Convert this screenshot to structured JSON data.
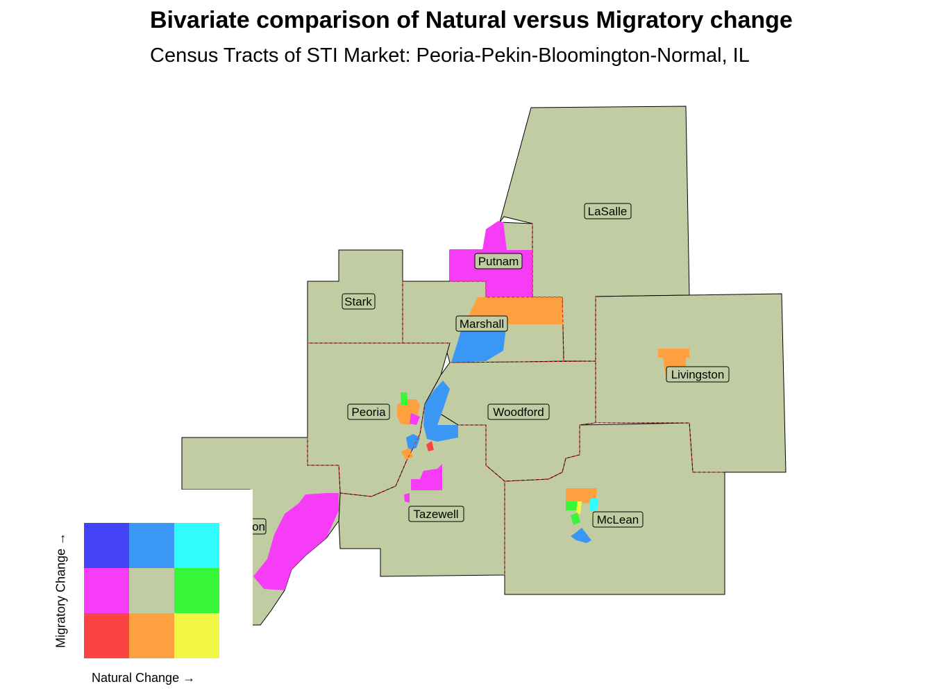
{
  "title": "Bivariate comparison of Natural versus Migratory change",
  "subtitle": "Census Tracts of STI Market: Peoria-Pekin-Bloomington-Normal, IL",
  "colors": {
    "base": "#c2cca3",
    "county_border": "#e02020",
    "outline": "#000000"
  },
  "counties": [
    "LaSalle",
    "Putnam",
    "Stark",
    "Marshall",
    "Livingston",
    "Peoria",
    "Woodford",
    "Tazewell",
    "McLean",
    "Fulton"
  ],
  "visible_county_labels": {
    "lasalle": "LaSalle",
    "putnam": "Putnam",
    "stark": "Stark",
    "marshall": "Marshall",
    "livingston": "Livingston",
    "peoria": "Peoria",
    "woodford": "Woodford",
    "tazewell": "Tazewell",
    "mclean": "McLean",
    "fulton_partial": "on"
  },
  "legend": {
    "x_label": "Natural Change →",
    "y_label": "Migratory Change →",
    "grid": [
      [
        "#4343f5",
        "#3b97f5",
        "#2ffcfc"
      ],
      [
        "#f73cf7",
        "#c2cca3",
        "#38f738"
      ],
      [
        "#fa4343",
        "#fca040",
        "#f2f746"
      ]
    ],
    "grid_meaning": "rows from top: high, medium, low migratory change; columns from left: low, medium, high natural change"
  }
}
